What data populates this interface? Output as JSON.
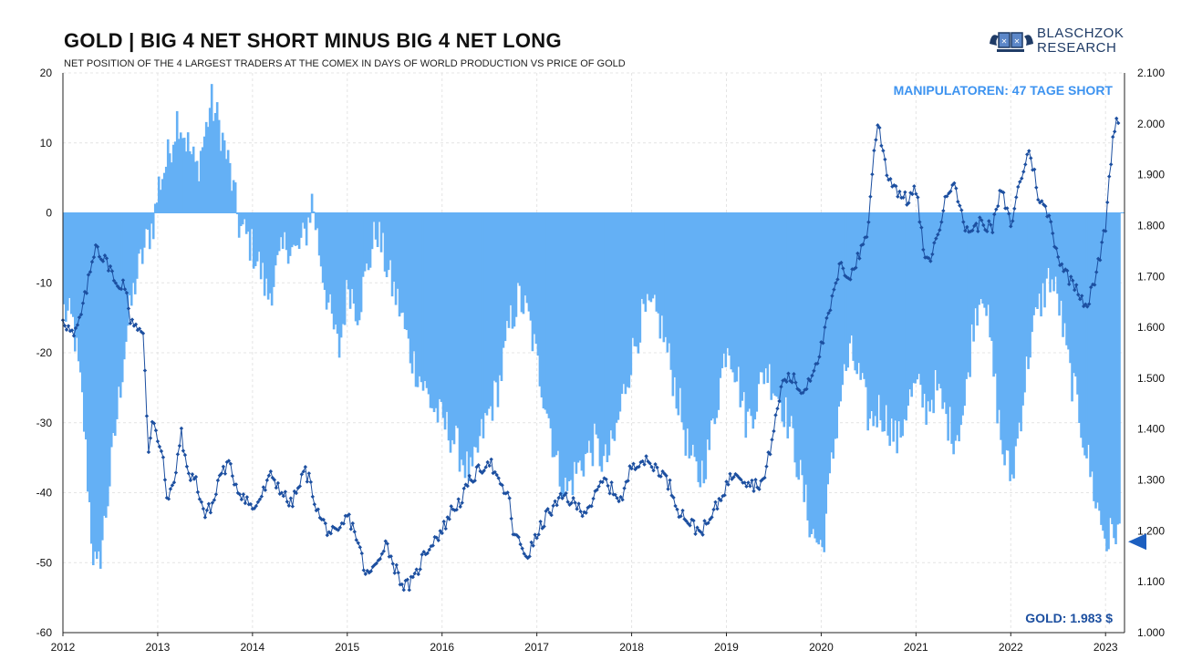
{
  "header": {
    "title": "GOLD | BIG 4 NET SHORT MINUS BIG 4 NET LONG",
    "subtitle": "NET POSITION OF THE 4 LARGEST TRADERS AT THE COMEX IN DAYS OF WORLD PRODUCTION VS PRICE OF GOLD"
  },
  "logo": {
    "line1": "BLASCHZOK",
    "line2": "RESEARCH"
  },
  "colors": {
    "bars": "#64b0f5",
    "line": "#1c4fa0",
    "annotation_top": "#3d93f0",
    "annotation_bottom": "#1c4fa0",
    "marker": "#1c5fc0"
  },
  "chart_data": {
    "type": "bar+line",
    "title": "GOLD | BIG 4 NET SHORT MINUS BIG 4 NET LONG",
    "subtitle": "NET POSITION OF THE 4 LARGEST TRADERS AT THE COMEX IN DAYS OF WORLD PRODUCTION VS PRICE OF GOLD",
    "x_ticks": [
      "2012",
      "2013",
      "2014",
      "2015",
      "2016",
      "2017",
      "2018",
      "2019",
      "2020",
      "2021",
      "2022",
      "2023"
    ],
    "x_range": [
      2012.0,
      2023.15
    ],
    "y_left": {
      "range": [
        -60,
        20
      ],
      "ticks": [
        "20",
        "10",
        "0",
        "-10",
        "-20",
        "-30",
        "-40",
        "-50",
        "-60"
      ]
    },
    "y_right": {
      "range": [
        1000,
        2100
      ],
      "ticks": [
        "2.100",
        "2.000",
        "1.900",
        "1.800",
        "1.700",
        "1.600",
        "1.500",
        "1.400",
        "1.300",
        "1.200",
        "1.100",
        "1.000"
      ]
    },
    "grid": true,
    "bar_series_keypoints": [
      [
        2012.0,
        -14
      ],
      [
        2012.1,
        -16
      ],
      [
        2012.2,
        -28
      ],
      [
        2012.3,
        -48
      ],
      [
        2012.35,
        -52
      ],
      [
        2012.45,
        -42
      ],
      [
        2012.55,
        -30
      ],
      [
        2012.65,
        -18
      ],
      [
        2012.75,
        -10
      ],
      [
        2012.85,
        -5
      ],
      [
        2012.95,
        -1
      ],
      [
        2013.0,
        4
      ],
      [
        2013.1,
        8
      ],
      [
        2013.2,
        14
      ],
      [
        2013.3,
        10
      ],
      [
        2013.4,
        6
      ],
      [
        2013.5,
        12
      ],
      [
        2013.55,
        16
      ],
      [
        2013.65,
        12
      ],
      [
        2013.75,
        6
      ],
      [
        2013.85,
        -2
      ],
      [
        2013.95,
        -4
      ],
      [
        2014.05,
        -7
      ],
      [
        2014.15,
        -12
      ],
      [
        2014.25,
        -8
      ],
      [
        2014.35,
        -4
      ],
      [
        2014.45,
        -6
      ],
      [
        2014.55,
        -3
      ],
      [
        2014.62,
        2
      ],
      [
        2014.7,
        -6
      ],
      [
        2014.8,
        -14
      ],
      [
        2014.9,
        -20
      ],
      [
        2015.0,
        -10
      ],
      [
        2015.1,
        -14
      ],
      [
        2015.2,
        -8
      ],
      [
        2015.3,
        -2
      ],
      [
        2015.35,
        -5
      ],
      [
        2015.45,
        -10
      ],
      [
        2015.55,
        -14
      ],
      [
        2015.65,
        -20
      ],
      [
        2015.8,
        -25
      ],
      [
        2015.9,
        -28
      ],
      [
        2016.0,
        -30
      ],
      [
        2016.1,
        -32
      ],
      [
        2016.2,
        -35
      ],
      [
        2016.3,
        -38
      ],
      [
        2016.4,
        -32
      ],
      [
        2016.5,
        -28
      ],
      [
        2016.6,
        -24
      ],
      [
        2016.7,
        -16
      ],
      [
        2016.8,
        -12
      ],
      [
        2016.9,
        -15
      ],
      [
        2017.0,
        -22
      ],
      [
        2017.1,
        -28
      ],
      [
        2017.2,
        -36
      ],
      [
        2017.3,
        -40
      ],
      [
        2017.4,
        -37
      ],
      [
        2017.5,
        -35
      ],
      [
        2017.6,
        -33
      ],
      [
        2017.7,
        -36
      ],
      [
        2017.8,
        -33
      ],
      [
        2017.9,
        -26
      ],
      [
        2018.0,
        -20
      ],
      [
        2018.1,
        -15
      ],
      [
        2018.2,
        -14
      ],
      [
        2018.3,
        -16
      ],
      [
        2018.4,
        -22
      ],
      [
        2018.5,
        -28
      ],
      [
        2018.6,
        -35
      ],
      [
        2018.7,
        -38
      ],
      [
        2018.8,
        -34
      ],
      [
        2018.9,
        -26
      ],
      [
        2019.0,
        -18
      ],
      [
        2019.1,
        -23
      ],
      [
        2019.2,
        -30
      ],
      [
        2019.3,
        -27
      ],
      [
        2019.4,
        -22
      ],
      [
        2019.5,
        -25
      ],
      [
        2019.6,
        -28
      ],
      [
        2019.7,
        -33
      ],
      [
        2019.8,
        -40
      ],
      [
        2019.9,
        -46
      ],
      [
        2020.0,
        -48
      ],
      [
        2020.1,
        -36
      ],
      [
        2020.2,
        -25
      ],
      [
        2020.3,
        -20
      ],
      [
        2020.4,
        -24
      ],
      [
        2020.5,
        -30
      ],
      [
        2020.6,
        -28
      ],
      [
        2020.7,
        -30
      ],
      [
        2020.8,
        -33
      ],
      [
        2020.9,
        -27
      ],
      [
        2021.0,
        -25
      ],
      [
        2021.1,
        -28
      ],
      [
        2021.2,
        -25
      ],
      [
        2021.3,
        -29
      ],
      [
        2021.4,
        -32
      ],
      [
        2021.5,
        -28
      ],
      [
        2021.6,
        -15
      ],
      [
        2021.7,
        -10
      ],
      [
        2021.8,
        -22
      ],
      [
        2021.9,
        -34
      ],
      [
        2022.0,
        -38
      ],
      [
        2022.1,
        -28
      ],
      [
        2022.2,
        -18
      ],
      [
        2022.3,
        -13
      ],
      [
        2022.4,
        -9
      ],
      [
        2022.5,
        -13
      ],
      [
        2022.6,
        -22
      ],
      [
        2022.7,
        -28
      ],
      [
        2022.8,
        -35
      ],
      [
        2022.9,
        -42
      ],
      [
        2023.0,
        -47
      ],
      [
        2023.1,
        -45
      ],
      [
        2023.15,
        -47
      ]
    ],
    "line_series_keypoints": [
      [
        2012.0,
        1620
      ],
      [
        2012.05,
        1600
      ],
      [
        2012.12,
        1580
      ],
      [
        2012.2,
        1630
      ],
      [
        2012.3,
        1720
      ],
      [
        2012.35,
        1770
      ],
      [
        2012.4,
        1740
      ],
      [
        2012.5,
        1720
      ],
      [
        2012.55,
        1680
      ],
      [
        2012.65,
        1690
      ],
      [
        2012.7,
        1620
      ],
      [
        2012.8,
        1600
      ],
      [
        2012.85,
        1580
      ],
      [
        2012.9,
        1350
      ],
      [
        2012.95,
        1430
      ],
      [
        2013.0,
        1380
      ],
      [
        2013.05,
        1360
      ],
      [
        2013.1,
        1250
      ],
      [
        2013.2,
        1320
      ],
      [
        2013.25,
        1400
      ],
      [
        2013.3,
        1320
      ],
      [
        2013.4,
        1300
      ],
      [
        2013.5,
        1230
      ],
      [
        2013.6,
        1260
      ],
      [
        2013.65,
        1310
      ],
      [
        2013.75,
        1330
      ],
      [
        2013.85,
        1280
      ],
      [
        2013.95,
        1260
      ],
      [
        2014.0,
        1240
      ],
      [
        2014.1,
        1270
      ],
      [
        2014.2,
        1310
      ],
      [
        2014.3,
        1280
      ],
      [
        2014.4,
        1250
      ],
      [
        2014.5,
        1290
      ],
      [
        2014.55,
        1320
      ],
      [
        2014.6,
        1300
      ],
      [
        2014.7,
        1230
      ],
      [
        2014.8,
        1200
      ],
      [
        2014.9,
        1190
      ],
      [
        2015.0,
        1230
      ],
      [
        2015.08,
        1200
      ],
      [
        2015.15,
        1150
      ],
      [
        2015.2,
        1110
      ],
      [
        2015.3,
        1130
      ],
      [
        2015.4,
        1180
      ],
      [
        2015.5,
        1130
      ],
      [
        2015.6,
        1090
      ],
      [
        2015.7,
        1100
      ],
      [
        2015.8,
        1150
      ],
      [
        2015.9,
        1180
      ],
      [
        2016.0,
        1200
      ],
      [
        2016.1,
        1240
      ],
      [
        2016.2,
        1260
      ],
      [
        2016.3,
        1300
      ],
      [
        2016.4,
        1320
      ],
      [
        2016.5,
        1340
      ],
      [
        2016.6,
        1290
      ],
      [
        2016.7,
        1270
      ],
      [
        2016.75,
        1200
      ],
      [
        2016.8,
        1180
      ],
      [
        2016.9,
        1150
      ],
      [
        2017.0,
        1190
      ],
      [
        2017.1,
        1230
      ],
      [
        2017.2,
        1250
      ],
      [
        2017.3,
        1270
      ],
      [
        2017.4,
        1250
      ],
      [
        2017.5,
        1240
      ],
      [
        2017.6,
        1260
      ],
      [
        2017.7,
        1300
      ],
      [
        2017.8,
        1280
      ],
      [
        2017.9,
        1260
      ],
      [
        2018.0,
        1330
      ],
      [
        2018.1,
        1340
      ],
      [
        2018.2,
        1330
      ],
      [
        2018.3,
        1320
      ],
      [
        2018.4,
        1290
      ],
      [
        2018.5,
        1240
      ],
      [
        2018.6,
        1220
      ],
      [
        2018.7,
        1200
      ],
      [
        2018.8,
        1210
      ],
      [
        2018.9,
        1250
      ],
      [
        2019.0,
        1290
      ],
      [
        2019.1,
        1320
      ],
      [
        2019.2,
        1300
      ],
      [
        2019.3,
        1290
      ],
      [
        2019.4,
        1300
      ],
      [
        2019.5,
        1400
      ],
      [
        2019.6,
        1500
      ],
      [
        2019.7,
        1500
      ],
      [
        2019.8,
        1470
      ],
      [
        2019.9,
        1510
      ],
      [
        2020.0,
        1560
      ],
      [
        2020.1,
        1640
      ],
      [
        2020.2,
        1720
      ],
      [
        2020.3,
        1700
      ],
      [
        2020.4,
        1740
      ],
      [
        2020.5,
        1800
      ],
      [
        2020.55,
        1940
      ],
      [
        2020.6,
        2000
      ],
      [
        2020.7,
        1900
      ],
      [
        2020.8,
        1870
      ],
      [
        2020.9,
        1850
      ],
      [
        2021.0,
        1870
      ],
      [
        2021.05,
        1800
      ],
      [
        2021.1,
        1720
      ],
      [
        2021.2,
        1760
      ],
      [
        2021.3,
        1840
      ],
      [
        2021.4,
        1900
      ],
      [
        2021.5,
        1800
      ],
      [
        2021.6,
        1790
      ],
      [
        2021.7,
        1810
      ],
      [
        2021.8,
        1790
      ],
      [
        2021.9,
        1870
      ],
      [
        2022.0,
        1800
      ],
      [
        2022.1,
        1890
      ],
      [
        2022.2,
        1950
      ],
      [
        2022.3,
        1850
      ],
      [
        2022.4,
        1820
      ],
      [
        2022.5,
        1740
      ],
      [
        2022.6,
        1700
      ],
      [
        2022.7,
        1680
      ],
      [
        2022.8,
        1640
      ],
      [
        2022.9,
        1700
      ],
      [
        2023.0,
        1800
      ],
      [
        2023.05,
        1920
      ],
      [
        2023.1,
        2000
      ],
      [
        2023.12,
        2030
      ],
      [
        2023.15,
        1960
      ]
    ],
    "annotations": [
      {
        "text": "MANIPULATOREN: 47 TAGE SHORT"
      },
      {
        "text": "GOLD: 1.983 $"
      }
    ],
    "current_marker": {
      "axis": "left",
      "value": -47
    }
  }
}
